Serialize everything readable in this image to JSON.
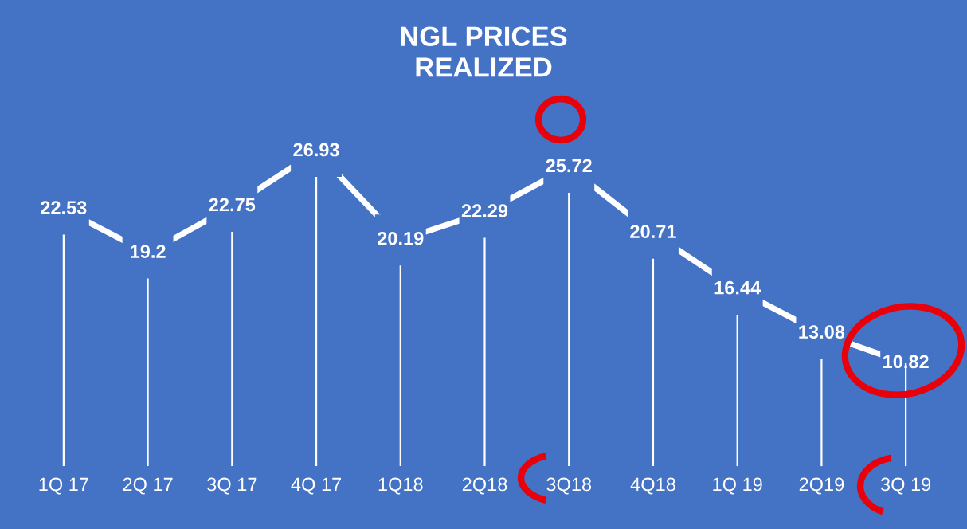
{
  "chart_data": {
    "type": "line",
    "title": "NGL PRICES\nREALIZED",
    "categories": [
      "1Q 17",
      "2Q 17",
      "3Q 17",
      "4Q 17",
      "1Q18",
      "2Q18",
      "3Q18",
      "4Q18",
      "1Q 19",
      "2Q19",
      "3Q 19"
    ],
    "series": [
      {
        "color": "#ffffff",
        "values": [
          22.53,
          19.2,
          22.75,
          26.93,
          20.19,
          22.29,
          25.72,
          20.71,
          16.44,
          13.08,
          10.82
        ]
      }
    ],
    "data_labels": true,
    "grid": "x",
    "legend": false,
    "marker": "square",
    "line_style": "solid"
  }
}
